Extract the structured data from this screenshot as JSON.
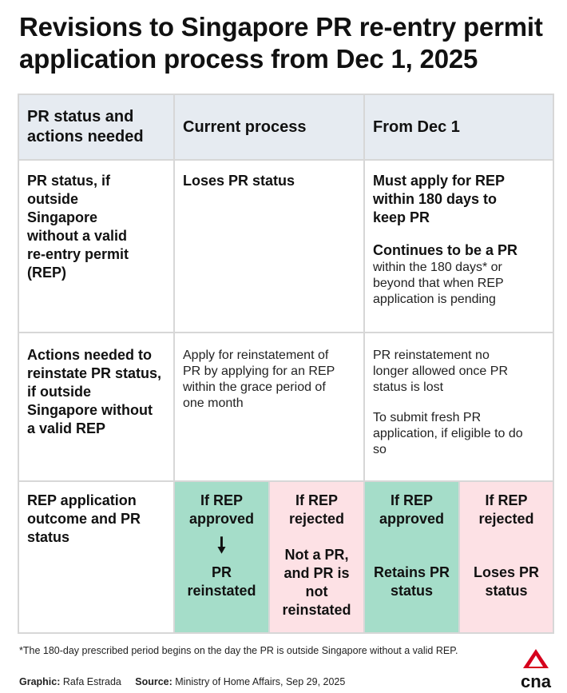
{
  "title": {
    "line1": "Revisions to Singapore PR re-entry permit",
    "line2": "application process from Dec 1, 2025"
  },
  "table": {
    "headers": {
      "col1": "PR status and actions needed",
      "col2": "Current process",
      "col3": "From Dec 1"
    },
    "row1": {
      "label": "PR status, if outside Singapore without a valid re-entry permit (REP)",
      "current": "Loses PR status",
      "future_bold": "Must apply for REP within 180 days to keep PR",
      "future_bold2": "Continues to be a PR",
      "future_normal": "within the 180 days* or beyond that when REP application is pending"
    },
    "row2": {
      "label": "Actions needed to reinstate PR status, if outside Singapore without a valid REP",
      "current": "Apply for reinstatement of PR by applying for an REP within the grace period of one month",
      "future1": "PR reinstatement no longer allowed once PR status is lost",
      "future2": "To submit fresh PR application, if eligible to do so"
    },
    "row3": {
      "label": "REP application outcome and PR status",
      "current_approved_head": "If REP approved",
      "current_approved_arrow": "🠗",
      "current_approved_result": "PR reinstated",
      "current_rejected_head": "If REP rejected",
      "current_rejected_result": "Not a PR, and PR is not reinstated",
      "future_approved_head": "If REP approved",
      "future_approved_result": "Retains PR status",
      "future_rejected_head": "If REP rejected",
      "future_rejected_result": "Loses PR status"
    }
  },
  "footnote": "*The 180-day prescribed period begins on the day the PR is outside Singapore without a valid REP.",
  "credits": {
    "graphic_label": "Graphic:",
    "graphic_value": "Rafa Estrada",
    "source_label": "Source:",
    "source_value": "Ministry of Home Affairs, Sep 29, 2025"
  },
  "logo": {
    "text": "cna",
    "icon": "cna-logo-icon",
    "color": "#d6001c"
  },
  "colors": {
    "header_bg": "#e6ebf1",
    "approved_bg": "#a5ddc9",
    "rejected_bg": "#fde1e5",
    "border": "#d7d7d7"
  }
}
